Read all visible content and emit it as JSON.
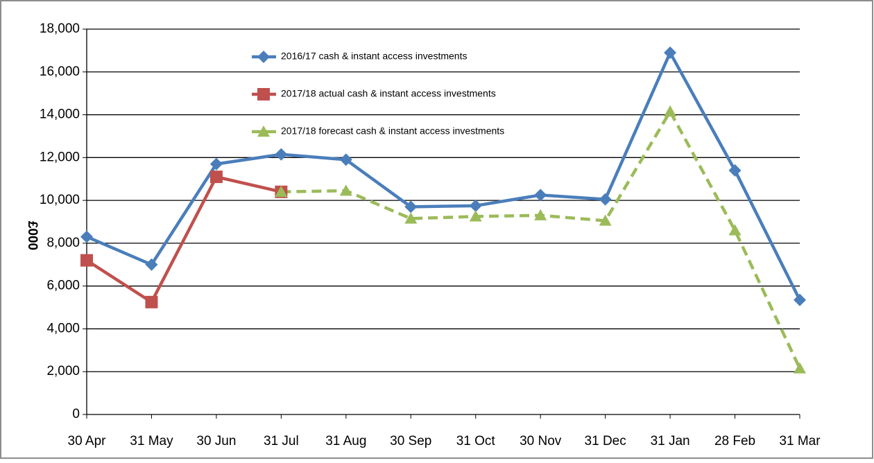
{
  "chart_data": {
    "type": "line",
    "y_label": "£000",
    "categories": [
      "30 Apr",
      "31 May",
      "30 Jun",
      "31 Jul",
      "31 Aug",
      "30 Sep",
      "31 Oct",
      "30 Nov",
      "31 Dec",
      "31 Jan",
      "28 Feb",
      "31 Mar"
    ],
    "series": [
      {
        "name": "2016/17 cash & instant access investments",
        "color": "#4a7ebb",
        "marker": "diamond",
        "line_style": "solid",
        "values": [
          8300,
          7000,
          11700,
          12150,
          11900,
          9700,
          9750,
          10250,
          10050,
          16900,
          11400,
          5350
        ]
      },
      {
        "name": "2017/18 actual cash & instant access investments",
        "color": "#c0504d",
        "marker": "square",
        "line_style": "solid",
        "values": [
          7200,
          5250,
          11100,
          10400,
          null,
          null,
          null,
          null,
          null,
          null,
          null,
          null
        ]
      },
      {
        "name": "2017/18 forecast cash & instant access investments",
        "color": "#9bbb59",
        "marker": "triangle",
        "line_style": "dashed",
        "values": [
          null,
          null,
          null,
          10400,
          10450,
          9150,
          9250,
          9300,
          9050,
          14150,
          8600,
          2150
        ]
      }
    ],
    "ylim": [
      0,
      18000
    ],
    "yticks": [
      0,
      {
        "value": 2000,
        "label": "2,000"
      },
      {
        "value": 4000,
        "label": "4,000"
      },
      {
        "value": 6000,
        "label": "6,000"
      },
      {
        "value": 8000,
        "label": "8,000"
      },
      {
        "value": 10000,
        "label": "10,000"
      },
      {
        "value": 12000,
        "label": "12,000"
      },
      {
        "value": 14000,
        "label": "14,000"
      },
      {
        "value": 16000,
        "label": "16,000"
      },
      {
        "value": 18000,
        "label": "18,000"
      }
    ],
    "grid": true,
    "legend": "top"
  }
}
